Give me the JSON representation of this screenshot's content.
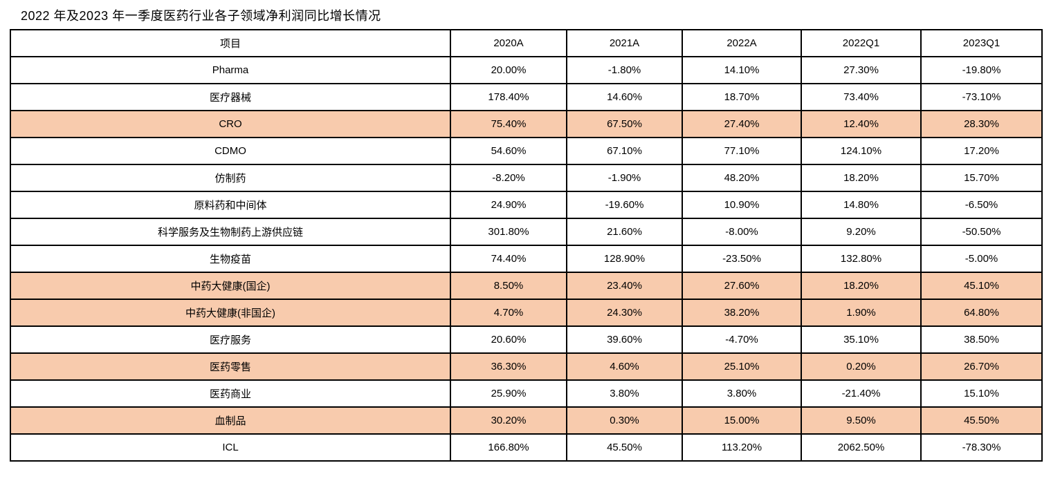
{
  "title": "2022 年及2023 年一季度医药行业各子领域净利润同比增长情况",
  "colors": {
    "highlight_row_background": "#F8CBAD",
    "border": "#000000",
    "text": "#000000",
    "page_background": "#FFFFFF"
  },
  "table": {
    "columns": [
      "项目",
      "2020A",
      "2021A",
      "2022A",
      "2022Q1",
      "2023Q1"
    ],
    "rows": [
      {
        "label": "Pharma",
        "values": [
          "20.00%",
          "-1.80%",
          "14.10%",
          "27.30%",
          "-19.80%"
        ],
        "highlighted": false
      },
      {
        "label": "医疗器械",
        "values": [
          "178.40%",
          "14.60%",
          "18.70%",
          "73.40%",
          "-73.10%"
        ],
        "highlighted": false
      },
      {
        "label": "CRO",
        "values": [
          "75.40%",
          "67.50%",
          "27.40%",
          "12.40%",
          "28.30%"
        ],
        "highlighted": true
      },
      {
        "label": "CDMO",
        "values": [
          "54.60%",
          "67.10%",
          "77.10%",
          "124.10%",
          "17.20%"
        ],
        "highlighted": false
      },
      {
        "label": "仿制药",
        "values": [
          "-8.20%",
          "-1.90%",
          "48.20%",
          "18.20%",
          "15.70%"
        ],
        "highlighted": false
      },
      {
        "label": "原料药和中间体",
        "values": [
          "24.90%",
          "-19.60%",
          "10.90%",
          "14.80%",
          "-6.50%"
        ],
        "highlighted": false
      },
      {
        "label": "科学服务及生物制药上游供应链",
        "values": [
          "301.80%",
          "21.60%",
          "-8.00%",
          "9.20%",
          "-50.50%"
        ],
        "highlighted": false
      },
      {
        "label": "生物疫苗",
        "values": [
          "74.40%",
          "128.90%",
          "-23.50%",
          "132.80%",
          "-5.00%"
        ],
        "highlighted": false
      },
      {
        "label": "中药大健康(国企)",
        "values": [
          "8.50%",
          "23.40%",
          "27.60%",
          "18.20%",
          "45.10%"
        ],
        "highlighted": true
      },
      {
        "label": "中药大健康(非国企)",
        "values": [
          "4.70%",
          "24.30%",
          "38.20%",
          "1.90%",
          "64.80%"
        ],
        "highlighted": true
      },
      {
        "label": "医疗服务",
        "values": [
          "20.60%",
          "39.60%",
          "-4.70%",
          "35.10%",
          "38.50%"
        ],
        "highlighted": false
      },
      {
        "label": "医药零售",
        "values": [
          "36.30%",
          "4.60%",
          "25.10%",
          "0.20%",
          "26.70%"
        ],
        "highlighted": true
      },
      {
        "label": "医药商业",
        "values": [
          "25.90%",
          "3.80%",
          "3.80%",
          "-21.40%",
          "15.10%"
        ],
        "highlighted": false
      },
      {
        "label": "血制品",
        "values": [
          "30.20%",
          "0.30%",
          "15.00%",
          "9.50%",
          "45.50%"
        ],
        "highlighted": true
      },
      {
        "label": "ICL",
        "values": [
          "166.80%",
          "45.50%",
          "113.20%",
          "2062.50%",
          "-78.30%"
        ],
        "highlighted": false
      }
    ]
  }
}
